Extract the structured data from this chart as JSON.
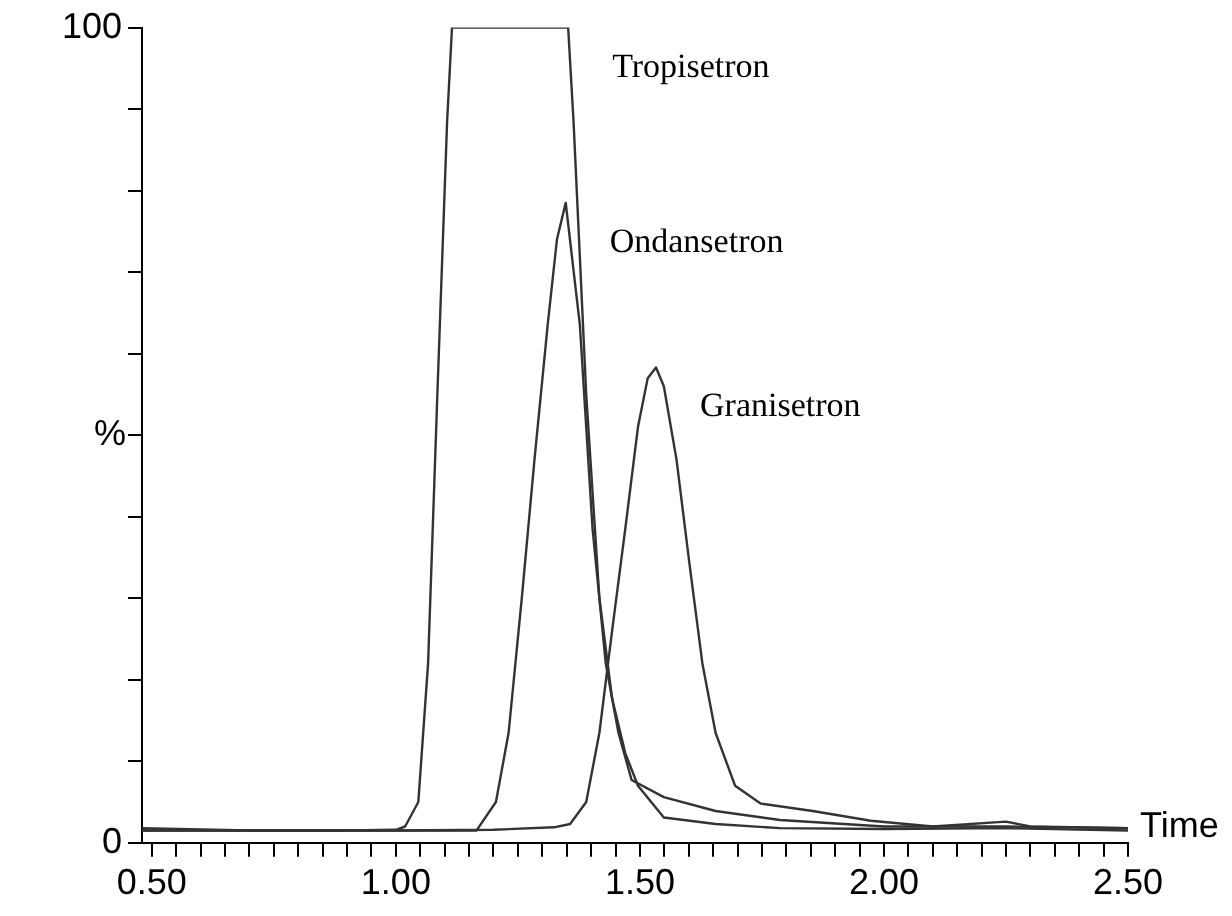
{
  "chart_data": {
    "type": "line",
    "xlabel": "Time",
    "ylabel": "%",
    "xlim": [
      0.48,
      2.5
    ],
    "ylim": [
      0,
      100
    ],
    "xticks": [
      {
        "value": 0.5,
        "label": "0.50"
      },
      {
        "value": 0.55,
        "label": null
      },
      {
        "value": 0.6,
        "label": null
      },
      {
        "value": 0.65,
        "label": null
      },
      {
        "value": 0.7,
        "label": null
      },
      {
        "value": 0.75,
        "label": null
      },
      {
        "value": 0.8,
        "label": null
      },
      {
        "value": 0.85,
        "label": null
      },
      {
        "value": 0.9,
        "label": null
      },
      {
        "value": 0.95,
        "label": null
      },
      {
        "value": 1.0,
        "label": "1.00"
      },
      {
        "value": 1.05,
        "label": null
      },
      {
        "value": 1.1,
        "label": null
      },
      {
        "value": 1.15,
        "label": null
      },
      {
        "value": 1.2,
        "label": null
      },
      {
        "value": 1.25,
        "label": null
      },
      {
        "value": 1.3,
        "label": null
      },
      {
        "value": 1.35,
        "label": null
      },
      {
        "value": 1.4,
        "label": null
      },
      {
        "value": 1.45,
        "label": null
      },
      {
        "value": 1.5,
        "label": "1.50"
      },
      {
        "value": 1.55,
        "label": null
      },
      {
        "value": 1.6,
        "label": null
      },
      {
        "value": 1.65,
        "label": null
      },
      {
        "value": 1.7,
        "label": null
      },
      {
        "value": 1.75,
        "label": null
      },
      {
        "value": 1.8,
        "label": null
      },
      {
        "value": 1.85,
        "label": null
      },
      {
        "value": 1.9,
        "label": null
      },
      {
        "value": 1.95,
        "label": null
      },
      {
        "value": 2.0,
        "label": "2.00"
      },
      {
        "value": 2.05,
        "label": null
      },
      {
        "value": 2.1,
        "label": null
      },
      {
        "value": 2.15,
        "label": null
      },
      {
        "value": 2.2,
        "label": null
      },
      {
        "value": 2.25,
        "label": null
      },
      {
        "value": 2.3,
        "label": null
      },
      {
        "value": 2.35,
        "label": null
      },
      {
        "value": 2.4,
        "label": null
      },
      {
        "value": 2.45,
        "label": null
      },
      {
        "value": 2.5,
        "label": "2.50"
      }
    ],
    "yticks": [
      0,
      {
        "value": 10,
        "label": null
      },
      {
        "value": 20,
        "label": null
      },
      {
        "value": 30,
        "label": null
      },
      {
        "value": 40,
        "label": null
      },
      {
        "value": 50,
        "label": null
      },
      {
        "value": 60,
        "label": null
      },
      {
        "value": 70,
        "label": null
      },
      {
        "value": 80,
        "label": null
      },
      {
        "value": 90,
        "label": null
      },
      100
    ],
    "grid": false,
    "legend": false,
    "marker": "none",
    "line_style": "solid",
    "series": [
      {
        "name": "Tropisetron",
        "color": "#333333",
        "x": [
          0.48,
          0.7,
          0.9,
          1.0,
          1.019,
          1.046,
          1.066,
          1.085,
          1.105,
          1.115,
          1.353,
          1.364,
          1.377,
          1.39,
          1.417,
          1.443,
          1.47,
          1.496,
          1.549,
          1.655,
          1.787,
          2.0,
          2.25,
          2.5
        ],
        "values": [
          1.8,
          1.5,
          1.5,
          1.6,
          2,
          5,
          22,
          55,
          88.5,
          100,
          100,
          88.5,
          71.8,
          55,
          30,
          17.7,
          11,
          7,
          3.1,
          2.3,
          1.8,
          1.7,
          1.8,
          1.5
        ]
      },
      {
        "name": "Ondansetron",
        "color": "#333333",
        "x": [
          0.48,
          0.8,
          1.1,
          1.165,
          1.205,
          1.231,
          1.258,
          1.284,
          1.311,
          1.33,
          1.348,
          1.377,
          1.403,
          1.43,
          1.456,
          1.483,
          1.549,
          1.655,
          1.787,
          2.0,
          2.25,
          2.5
        ],
        "values": [
          1.5,
          1.5,
          1.5,
          1.5,
          5,
          13.5,
          30,
          47,
          63.5,
          74,
          78.5,
          63.5,
          38.5,
          22,
          13.5,
          7.7,
          5.6,
          3.9,
          2.8,
          2,
          2,
          1.8
        ]
      },
      {
        "name": "Granisetron",
        "color": "#333333",
        "x": [
          0.48,
          1.0,
          1.2,
          1.324,
          1.357,
          1.39,
          1.417,
          1.443,
          1.47,
          1.496,
          1.516,
          1.533,
          1.549,
          1.575,
          1.602,
          1.628,
          1.655,
          1.695,
          1.748,
          1.854,
          1.973,
          2.1,
          2.25,
          2.3,
          2.5
        ],
        "values": [
          1.5,
          1.5,
          1.6,
          1.9,
          2.3,
          5,
          13.5,
          26,
          38.5,
          51,
          57,
          58.3,
          56,
          47,
          34,
          22,
          13.5,
          7,
          4.8,
          3.9,
          2.7,
          2,
          2.6,
          2,
          1.8
        ]
      }
    ]
  }
}
